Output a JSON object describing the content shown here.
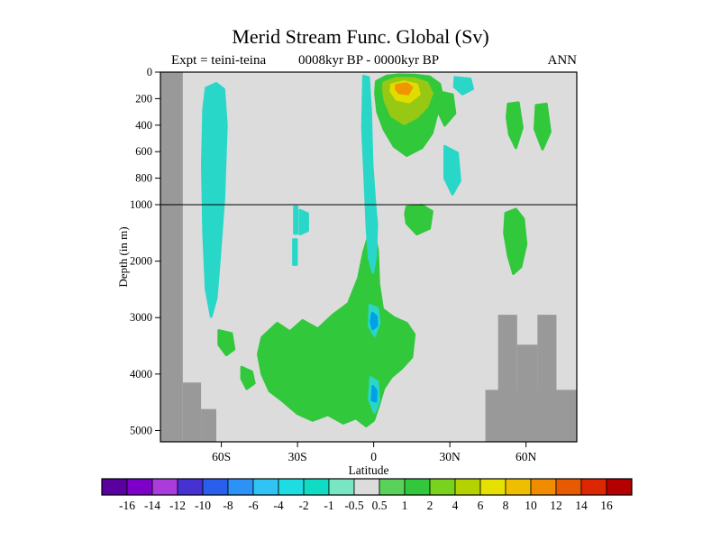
{
  "header": {
    "title": "Merid Stream Func. Global (Sv)",
    "experiment": "Expt = teini-teina",
    "period": "0008kyr BP - 0000kyr BP",
    "season": "ANN"
  },
  "chart_data": {
    "type": "contour",
    "title": "Merid Stream Func. Global (Sv)",
    "subtitle_left": "Expt = teini-teina",
    "subtitle_center": "0008kyr BP - 0000kyr BP",
    "subtitle_right": "ANN",
    "xlabel": "Latitude",
    "ylabel": "Depth (in m)",
    "units": "Sv",
    "x_range": [
      -84,
      80
    ],
    "depth_range": [
      0,
      5200
    ],
    "depth_split": 1000,
    "background_value_band": "-0.5 to 0.5",
    "x_ticks": [
      {
        "value": -60,
        "label": "60S"
      },
      {
        "value": -30,
        "label": "30S"
      },
      {
        "value": 0,
        "label": "0"
      },
      {
        "value": 30,
        "label": "30N"
      },
      {
        "value": 60,
        "label": "60N"
      }
    ],
    "y_ticks": [
      {
        "value": 0,
        "label": "0"
      },
      {
        "value": 200,
        "label": "200"
      },
      {
        "value": 400,
        "label": "400"
      },
      {
        "value": 600,
        "label": "600"
      },
      {
        "value": 800,
        "label": "800"
      },
      {
        "value": 1000,
        "label": "1000"
      },
      {
        "value": 2000,
        "label": "2000"
      },
      {
        "value": 3000,
        "label": "3000"
      },
      {
        "value": 4000,
        "label": "4000"
      },
      {
        "value": 5000,
        "label": "5000"
      }
    ],
    "colors": {
      "plot_bg": "#dcdcdc",
      "land": "#999999",
      "frame": "#000000"
    },
    "colorbar": {
      "boundary_labels": [
        "-16",
        "-14",
        "-12",
        "-10",
        "-8",
        "-6",
        "-4",
        "-2",
        "-1",
        "-0.5",
        "0.5",
        "1",
        "2",
        "4",
        "6",
        "8",
        "10",
        "12",
        "14",
        "16"
      ],
      "segment_colors": [
        "#5a00a0",
        "#7d00c8",
        "#aa3cdc",
        "#4632d2",
        "#2860ec",
        "#2d92f5",
        "#32c3f5",
        "#1edce1",
        "#0fdcc3",
        "#78e6c3",
        "#dcdcdc",
        "#5ad25a",
        "#32c83c",
        "#78d21e",
        "#b4d200",
        "#e6e100",
        "#f0be00",
        "#f08c00",
        "#e65a00",
        "#dc2800",
        "#b40000"
      ]
    },
    "regions": [
      {
        "name": "abyssal-green-cell",
        "value_band": "1 to 2",
        "color": "#32c83c",
        "points": [
          [
            -44,
            3350
          ],
          [
            -38,
            3100
          ],
          [
            -33,
            3250
          ],
          [
            -28,
            3050
          ],
          [
            -22,
            3200
          ],
          [
            -16,
            2950
          ],
          [
            -10,
            2750
          ],
          [
            -6,
            2300
          ],
          [
            -4,
            1850
          ],
          [
            -2,
            1550
          ],
          [
            0,
            1480
          ],
          [
            1.5,
            1800
          ],
          [
            2,
            2400
          ],
          [
            3.5,
            2850
          ],
          [
            8,
            3000
          ],
          [
            13,
            3100
          ],
          [
            16,
            3300
          ],
          [
            15,
            3700
          ],
          [
            11,
            3900
          ],
          [
            7,
            4050
          ],
          [
            4,
            4250
          ],
          [
            2,
            4550
          ],
          [
            0,
            4820
          ],
          [
            -3,
            4920
          ],
          [
            -7,
            4780
          ],
          [
            -12,
            4870
          ],
          [
            -18,
            4720
          ],
          [
            -24,
            4820
          ],
          [
            -30,
            4700
          ],
          [
            -36,
            4470
          ],
          [
            -41,
            4300
          ],
          [
            -44,
            4000
          ],
          [
            -45.5,
            3650
          ]
        ]
      },
      {
        "name": "green-patch-sw-1",
        "value_band": "1 to 2",
        "color": "#32c83c",
        "points": [
          [
            -61,
            3230
          ],
          [
            -56,
            3280
          ],
          [
            -55,
            3560
          ],
          [
            -58,
            3660
          ],
          [
            -61,
            3480
          ]
        ]
      },
      {
        "name": "green-patch-sw-2",
        "value_band": "1 to 2",
        "color": "#32c83c",
        "points": [
          [
            -52,
            3880
          ],
          [
            -48,
            3960
          ],
          [
            -47,
            4160
          ],
          [
            -50,
            4260
          ],
          [
            -52,
            4080
          ]
        ]
      },
      {
        "name": "green-below-line-north",
        "value_band": "1 to 2",
        "color": "#32c83c",
        "points": [
          [
            13,
            1040
          ],
          [
            19,
            1010
          ],
          [
            23,
            1120
          ],
          [
            22,
            1420
          ],
          [
            17,
            1520
          ],
          [
            13,
            1330
          ],
          [
            12.5,
            1160
          ]
        ]
      },
      {
        "name": "right-deep-green",
        "value_band": "1 to 2",
        "color": "#32c83c",
        "points": [
          [
            52,
            1150
          ],
          [
            56,
            1080
          ],
          [
            59,
            1250
          ],
          [
            60,
            1700
          ],
          [
            58,
            2100
          ],
          [
            55,
            2220
          ],
          [
            53,
            1900
          ],
          [
            51.5,
            1500
          ]
        ]
      },
      {
        "name": "right-mid-green-1",
        "value_band": "1 to 2",
        "color": "#32c83c",
        "points": [
          [
            53,
            240
          ],
          [
            57,
            230
          ],
          [
            58.5,
            420
          ],
          [
            56,
            570
          ],
          [
            53.5,
            470
          ],
          [
            52.5,
            340
          ]
        ]
      },
      {
        "name": "right-mid-green-2",
        "value_band": "1 to 2",
        "color": "#32c83c",
        "points": [
          [
            64,
            250
          ],
          [
            68,
            240
          ],
          [
            69.5,
            450
          ],
          [
            66.5,
            580
          ],
          [
            63.5,
            430
          ]
        ]
      },
      {
        "name": "tropics-outer-green",
        "value_band": "1 to 2",
        "color": "#32c83c",
        "points": [
          [
            1,
            70
          ],
          [
            5,
            30
          ],
          [
            10,
            20
          ],
          [
            16,
            22
          ],
          [
            22,
            35
          ],
          [
            26,
            90
          ],
          [
            27,
            180
          ],
          [
            25,
            310
          ],
          [
            23,
            460
          ],
          [
            19,
            570
          ],
          [
            13,
            630
          ],
          [
            8,
            560
          ],
          [
            4,
            430
          ],
          [
            1.5,
            300
          ],
          [
            0.7,
            160
          ]
        ]
      },
      {
        "name": "tropics-green-east-lobe",
        "value_band": "1 to 2",
        "color": "#32c83c",
        "points": [
          [
            26,
            150
          ],
          [
            31,
            170
          ],
          [
            32,
            310
          ],
          [
            28,
            400
          ],
          [
            25.5,
            300
          ]
        ]
      },
      {
        "name": "tropics-yellowgreen",
        "value_band": "2 to 4",
        "color": "#96c814",
        "points": [
          [
            4,
            80
          ],
          [
            9,
            45
          ],
          [
            16,
            48
          ],
          [
            21,
            80
          ],
          [
            23,
            160
          ],
          [
            21,
            260
          ],
          [
            17,
            340
          ],
          [
            12,
            390
          ],
          [
            7,
            330
          ],
          [
            4.5,
            220
          ],
          [
            3.8,
            130
          ]
        ]
      },
      {
        "name": "tropics-yellow",
        "value_band": "6 to 8",
        "color": "#e1dc00",
        "points": [
          [
            7,
            95
          ],
          [
            12,
            72
          ],
          [
            17,
            95
          ],
          [
            18,
            165
          ],
          [
            14,
            225
          ],
          [
            9,
            205
          ],
          [
            6.8,
            145
          ]
        ]
      },
      {
        "name": "tropics-orange-core",
        "value_band": "8 to 10",
        "color": "#f09600",
        "points": [
          [
            9,
            98
          ],
          [
            13,
            88
          ],
          [
            15,
            115
          ],
          [
            13.5,
            165
          ],
          [
            10,
            155
          ],
          [
            8.8,
            125
          ]
        ]
      },
      {
        "name": "left-cyan-band",
        "value_band": "-2 to -1",
        "color": "#28d7c8",
        "points": [
          [
            -66,
            120
          ],
          [
            -62,
            85
          ],
          [
            -59,
            130
          ],
          [
            -58,
            400
          ],
          [
            -59,
            950
          ],
          [
            -60,
            1500
          ],
          [
            -61,
            2100
          ],
          [
            -62,
            2650
          ],
          [
            -64,
            2980
          ],
          [
            -66,
            2500
          ],
          [
            -67,
            1500
          ],
          [
            -67.5,
            700
          ],
          [
            -67,
            280
          ]
        ]
      },
      {
        "name": "streak-30s-a",
        "value_band": "-2 to -1",
        "color": "#28d7c8",
        "points": [
          [
            -31.2,
            1040
          ],
          [
            -30.2,
            1040
          ],
          [
            -30.2,
            1510
          ],
          [
            -31.2,
            1510
          ]
        ]
      },
      {
        "name": "streak-30s-b",
        "value_band": "-2 to -1",
        "color": "#28d7c8",
        "points": [
          [
            -31.6,
            1620
          ],
          [
            -30.4,
            1620
          ],
          [
            -30.4,
            2060
          ],
          [
            -31.6,
            2060
          ]
        ]
      },
      {
        "name": "patch-30s",
        "value_band": "-2 to -1",
        "color": "#28d7c8",
        "points": [
          [
            -29,
            1100
          ],
          [
            -26,
            1160
          ],
          [
            -26,
            1460
          ],
          [
            -29,
            1520
          ]
        ]
      },
      {
        "name": "central-cyan-column",
        "value_band": "-2 to -1",
        "color": "#28d7c8",
        "points": [
          [
            -4,
            30
          ],
          [
            -2,
            40
          ],
          [
            -1.2,
            300
          ],
          [
            -0.6,
            700
          ],
          [
            0.5,
            1000
          ],
          [
            1.2,
            1350
          ],
          [
            0.8,
            1900
          ],
          [
            -0.3,
            2200
          ],
          [
            -1.8,
            1950
          ],
          [
            -2.6,
            1450
          ],
          [
            -3.4,
            850
          ],
          [
            -4.4,
            420
          ]
        ]
      },
      {
        "name": "cyan-patch-35n-shallow",
        "value_band": "-2 to -1",
        "color": "#28d7c8",
        "points": [
          [
            32,
            40
          ],
          [
            38,
            52
          ],
          [
            39,
            125
          ],
          [
            35,
            165
          ],
          [
            31.8,
            110
          ]
        ]
      },
      {
        "name": "cyan-patch-30n-mid",
        "value_band": "-2 to -1",
        "color": "#28d7c8",
        "points": [
          [
            28,
            560
          ],
          [
            33,
            610
          ],
          [
            34,
            820
          ],
          [
            31,
            920
          ],
          [
            28,
            800
          ]
        ]
      },
      {
        "name": "deep-oval-1-outer",
        "value_band": "-2 to -1",
        "color": "#28d7c8",
        "points": [
          [
            -1.5,
            2780
          ],
          [
            1.5,
            2840
          ],
          [
            2.2,
            3100
          ],
          [
            0.3,
            3320
          ],
          [
            -1.8,
            3140
          ]
        ]
      },
      {
        "name": "deep-oval-1-core",
        "value_band": "-4 to -2",
        "color": "#00a0e6",
        "points": [
          [
            -0.5,
            2920
          ],
          [
            1,
            2980
          ],
          [
            1.2,
            3140
          ],
          [
            -0.3,
            3200
          ],
          [
            -1,
            3070
          ]
        ]
      },
      {
        "name": "deep-oval-2-outer",
        "value_band": "-2 to -1",
        "color": "#28d7c8",
        "points": [
          [
            -1.2,
            4060
          ],
          [
            1.5,
            4140
          ],
          [
            2,
            4480
          ],
          [
            0.3,
            4680
          ],
          [
            -1.8,
            4440
          ]
        ]
      },
      {
        "name": "deep-oval-2-core",
        "value_band": "-4 to -2",
        "color": "#00a0e6",
        "points": [
          [
            -0.3,
            4220
          ],
          [
            1,
            4300
          ],
          [
            0.8,
            4480
          ],
          [
            -0.6,
            4460
          ]
        ]
      }
    ],
    "bathymetry": [
      {
        "name": "antarctic-shelf",
        "lat": [
          -84,
          -75.2
        ],
        "depth": [
          0,
          5200
        ]
      },
      {
        "name": "sw-base-step-1",
        "lat": [
          -75.2,
          -68
        ],
        "depth": [
          4150,
          5200
        ]
      },
      {
        "name": "sw-base-step-2",
        "lat": [
          -68,
          -62
        ],
        "depth": [
          4620,
          5200
        ]
      },
      {
        "name": "ne-ridge-pillar-west",
        "lat": [
          49,
          56.5
        ],
        "depth": [
          2950,
          5200
        ]
      },
      {
        "name": "ne-ridge-pillar-east",
        "lat": [
          64.5,
          72
        ],
        "depth": [
          2950,
          5200
        ]
      },
      {
        "name": "ne-ridge-saddle",
        "lat": [
          56.5,
          64.5
        ],
        "depth": [
          3480,
          5200
        ]
      },
      {
        "name": "ne-ridge-base",
        "lat": [
          44,
          80
        ],
        "depth": [
          4280,
          5200
        ]
      }
    ]
  }
}
